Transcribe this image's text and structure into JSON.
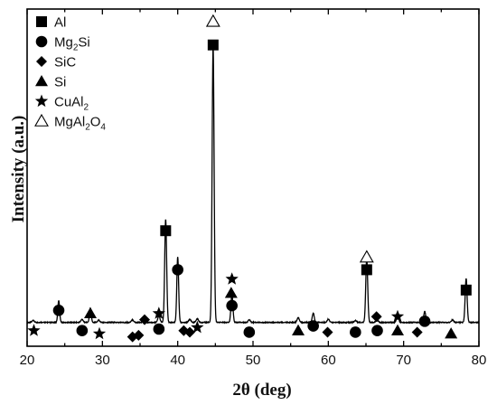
{
  "chart_data": {
    "type": "line",
    "title": "",
    "xlabel": "2θ (deg)",
    "ylabel": "Intensity (a.u.)",
    "xlim": [
      20,
      80
    ],
    "ylim": [
      0,
      100
    ],
    "y_ticks_shown": false,
    "x_ticks": [
      20,
      30,
      40,
      50,
      60,
      70,
      80
    ],
    "x_minor_tick_step": 5,
    "legend_position": "top-left",
    "baseline": 7.5,
    "peaks": [
      {
        "x": 20.8,
        "h": 0.6,
        "w": 0.15
      },
      {
        "x": 24.2,
        "h": 7.0,
        "w": 0.12
      },
      {
        "x": 27.3,
        "h": 1.0,
        "w": 0.15
      },
      {
        "x": 28.4,
        "h": 4.5,
        "w": 0.12
      },
      {
        "x": 29.5,
        "h": 0.7,
        "w": 0.15
      },
      {
        "x": 34.0,
        "h": 0.8,
        "w": 0.15
      },
      {
        "x": 35.6,
        "h": 1.5,
        "w": 0.15
      },
      {
        "x": 37.5,
        "h": 2.0,
        "w": 0.15
      },
      {
        "x": 38.4,
        "h": 33.0,
        "w": 0.13
      },
      {
        "x": 40.0,
        "h": 21.0,
        "w": 0.12
      },
      {
        "x": 41.6,
        "h": 1.0,
        "w": 0.15
      },
      {
        "x": 42.6,
        "h": 1.2,
        "w": 0.15
      },
      {
        "x": 44.7,
        "h": 88.5,
        "w": 0.13
      },
      {
        "x": 47.2,
        "h": 9.0,
        "w": 0.13
      },
      {
        "x": 49.5,
        "h": 0.8,
        "w": 0.15
      },
      {
        "x": 56.0,
        "h": 1.5,
        "w": 0.15
      },
      {
        "x": 58.0,
        "h": 3.0,
        "w": 0.13
      },
      {
        "x": 60.0,
        "h": 1.0,
        "w": 0.15
      },
      {
        "x": 63.6,
        "h": 0.6,
        "w": 0.15
      },
      {
        "x": 65.1,
        "h": 20.5,
        "w": 0.13
      },
      {
        "x": 66.5,
        "h": 0.8,
        "w": 0.15
      },
      {
        "x": 69.2,
        "h": 3.0,
        "w": 0.13
      },
      {
        "x": 72.8,
        "h": 3.5,
        "w": 0.13
      },
      {
        "x": 76.5,
        "h": 0.8,
        "w": 0.15
      },
      {
        "x": 78.3,
        "h": 14.0,
        "w": 0.13
      }
    ],
    "markers": [
      {
        "phase": "Al",
        "x": 38.4,
        "y": 37.0
      },
      {
        "phase": "Al",
        "x": 44.7,
        "y": 96.5
      },
      {
        "phase": "Al",
        "x": 65.1,
        "y": 24.5
      },
      {
        "phase": "Al",
        "x": 78.3,
        "y": 18.0
      },
      {
        "phase": "Mg2Si",
        "x": 24.2,
        "y": 11.5
      },
      {
        "phase": "Mg2Si",
        "x": 27.3,
        "y": 5.0
      },
      {
        "phase": "Mg2Si",
        "x": 37.5,
        "y": 5.5
      },
      {
        "phase": "Mg2Si",
        "x": 40.0,
        "y": 24.5
      },
      {
        "phase": "Mg2Si",
        "x": 47.2,
        "y": 13.0
      },
      {
        "phase": "Mg2Si",
        "x": 49.5,
        "y": 4.5
      },
      {
        "phase": "Mg2Si",
        "x": 58.0,
        "y": 6.5
      },
      {
        "phase": "Mg2Si",
        "x": 63.6,
        "y": 4.5
      },
      {
        "phase": "Mg2Si",
        "x": 66.5,
        "y": 5.0
      },
      {
        "phase": "Mg2Si",
        "x": 72.8,
        "y": 8.0
      },
      {
        "phase": "SiC",
        "x": 34.0,
        "y": 3.0
      },
      {
        "phase": "SiC",
        "x": 34.8,
        "y": 3.5
      },
      {
        "phase": "SiC",
        "x": 35.6,
        "y": 8.5
      },
      {
        "phase": "SiC",
        "x": 40.8,
        "y": 5.0
      },
      {
        "phase": "SiC",
        "x": 41.6,
        "y": 4.5
      },
      {
        "phase": "SiC",
        "x": 59.9,
        "y": 4.5
      },
      {
        "phase": "SiC",
        "x": 66.4,
        "y": 9.5
      },
      {
        "phase": "SiC",
        "x": 71.8,
        "y": 4.5
      },
      {
        "phase": "Si",
        "x": 28.4,
        "y": 10.5
      },
      {
        "phase": "Si",
        "x": 47.1,
        "y": 17.0
      },
      {
        "phase": "Si",
        "x": 56.0,
        "y": 5.0
      },
      {
        "phase": "Si",
        "x": 69.2,
        "y": 5.0
      },
      {
        "phase": "Si",
        "x": 76.3,
        "y": 4.0
      },
      {
        "phase": "CuAl2",
        "x": 20.9,
        "y": 5.0
      },
      {
        "phase": "CuAl2",
        "x": 29.6,
        "y": 4.0
      },
      {
        "phase": "CuAl2",
        "x": 37.5,
        "y": 10.5
      },
      {
        "phase": "CuAl2",
        "x": 42.6,
        "y": 6.0
      },
      {
        "phase": "CuAl2",
        "x": 47.2,
        "y": 21.5
      },
      {
        "phase": "CuAl2",
        "x": 69.2,
        "y": 9.5
      },
      {
        "phase": "MgAl2O4",
        "x": 44.7,
        "y": 104.0
      },
      {
        "phase": "MgAl2O4",
        "x": 65.1,
        "y": 28.5
      }
    ]
  },
  "legend": [
    {
      "marker": "filled-square",
      "label": "Al",
      "sub": ""
    },
    {
      "marker": "filled-circle",
      "label": "Mg",
      "sub": "2",
      "rest": "Si"
    },
    {
      "marker": "filled-diamond",
      "label": "SiC",
      "sub": ""
    },
    {
      "marker": "filled-triangle",
      "label": "Si",
      "sub": ""
    },
    {
      "marker": "filled-star",
      "label": "CuAl",
      "sub": "2"
    },
    {
      "marker": "open-triangle",
      "label": "MgAl",
      "sub": "2",
      "rest": "O",
      "sub2": "4"
    }
  ],
  "colors": {
    "line": "#000000",
    "marker": "#000000",
    "background": "#ffffff"
  }
}
